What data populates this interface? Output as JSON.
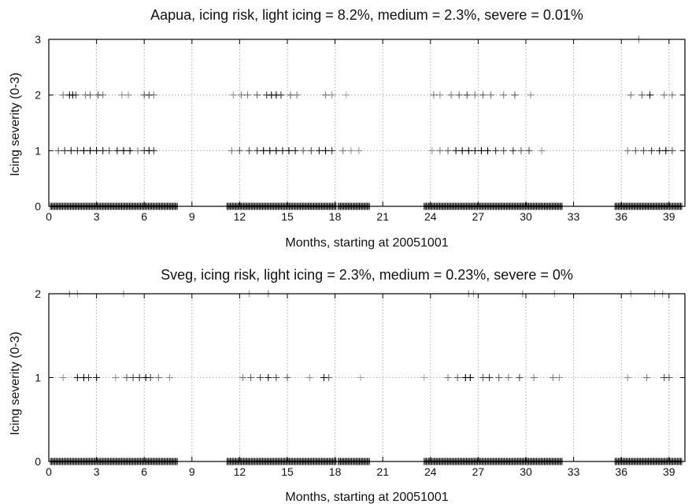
{
  "chart_data": [
    {
      "type": "scatter",
      "title": "Aapua, icing risk, light icing = 8.2%, medium = 2.3%, severe = 0.01%",
      "xlabel": "Months, starting at 20051001",
      "ylabel": "Icing severity (0-3)",
      "xlim": [
        0,
        40
      ],
      "ylim": [
        0,
        3
      ],
      "xticks": [
        0,
        3,
        6,
        9,
        12,
        15,
        18,
        21,
        24,
        27,
        30,
        33,
        36,
        39
      ],
      "yticks": [
        0,
        1,
        2,
        3
      ],
      "grid": true,
      "series": [
        {
          "marker": "+",
          "level0_ranges": [
            [
              0.1,
              8.1
            ],
            [
              11.2,
              18.1
            ],
            [
              18.2,
              20.2
            ],
            [
              23.6,
              32.3
            ],
            [
              35.6,
              39.8
            ]
          ],
          "points": [
            {
              "x": 0.9,
              "y": 2,
              "a": 0.5
            },
            {
              "x": 1.3,
              "y": 2,
              "a": 0.9
            },
            {
              "x": 1.5,
              "y": 2,
              "a": 1.0
            },
            {
              "x": 1.7,
              "y": 2,
              "a": 0.7
            },
            {
              "x": 2.3,
              "y": 2,
              "a": 0.5
            },
            {
              "x": 2.6,
              "y": 2,
              "a": 0.6
            },
            {
              "x": 3.1,
              "y": 2,
              "a": 0.7
            },
            {
              "x": 3.4,
              "y": 2,
              "a": 0.5
            },
            {
              "x": 4.6,
              "y": 2,
              "a": 0.4
            },
            {
              "x": 5.0,
              "y": 2,
              "a": 0.4
            },
            {
              "x": 6.0,
              "y": 2,
              "a": 0.6
            },
            {
              "x": 6.3,
              "y": 2,
              "a": 0.7
            },
            {
              "x": 6.6,
              "y": 2,
              "a": 0.5
            },
            {
              "x": 11.6,
              "y": 2,
              "a": 0.4
            },
            {
              "x": 12.1,
              "y": 2,
              "a": 0.5
            },
            {
              "x": 12.5,
              "y": 2,
              "a": 0.5
            },
            {
              "x": 13.1,
              "y": 2,
              "a": 0.6
            },
            {
              "x": 13.7,
              "y": 2,
              "a": 0.8
            },
            {
              "x": 14.0,
              "y": 2,
              "a": 1.0
            },
            {
              "x": 14.3,
              "y": 2,
              "a": 1.0
            },
            {
              "x": 14.6,
              "y": 2,
              "a": 0.8
            },
            {
              "x": 15.2,
              "y": 2,
              "a": 0.6
            },
            {
              "x": 15.6,
              "y": 2,
              "a": 0.5
            },
            {
              "x": 17.4,
              "y": 2,
              "a": 0.5
            },
            {
              "x": 17.8,
              "y": 2,
              "a": 0.4
            },
            {
              "x": 18.7,
              "y": 2,
              "a": 0.3
            },
            {
              "x": 24.2,
              "y": 2,
              "a": 0.5
            },
            {
              "x": 24.6,
              "y": 2,
              "a": 0.4
            },
            {
              "x": 25.3,
              "y": 2,
              "a": 0.5
            },
            {
              "x": 25.8,
              "y": 2,
              "a": 0.6
            },
            {
              "x": 26.3,
              "y": 2,
              "a": 0.7
            },
            {
              "x": 26.8,
              "y": 2,
              "a": 0.5
            },
            {
              "x": 27.3,
              "y": 2,
              "a": 0.6
            },
            {
              "x": 27.8,
              "y": 2,
              "a": 0.5
            },
            {
              "x": 28.6,
              "y": 2,
              "a": 0.5
            },
            {
              "x": 29.3,
              "y": 2,
              "a": 0.6
            },
            {
              "x": 30.3,
              "y": 2,
              "a": 0.4
            },
            {
              "x": 36.6,
              "y": 2,
              "a": 0.5
            },
            {
              "x": 37.3,
              "y": 2,
              "a": 0.6
            },
            {
              "x": 37.8,
              "y": 2,
              "a": 0.9
            },
            {
              "x": 38.7,
              "y": 2,
              "a": 0.5
            },
            {
              "x": 39.2,
              "y": 2,
              "a": 0.5
            },
            {
              "x": 0.6,
              "y": 1,
              "a": 0.6
            },
            {
              "x": 1.0,
              "y": 1,
              "a": 0.8
            },
            {
              "x": 1.4,
              "y": 1,
              "a": 0.9
            },
            {
              "x": 1.8,
              "y": 1,
              "a": 0.8
            },
            {
              "x": 2.2,
              "y": 1,
              "a": 1.0
            },
            {
              "x": 2.6,
              "y": 1,
              "a": 1.0
            },
            {
              "x": 3.0,
              "y": 1,
              "a": 1.0
            },
            {
              "x": 3.4,
              "y": 1,
              "a": 0.9
            },
            {
              "x": 3.8,
              "y": 1,
              "a": 0.7
            },
            {
              "x": 4.3,
              "y": 1,
              "a": 0.9
            },
            {
              "x": 4.7,
              "y": 1,
              "a": 1.0
            },
            {
              "x": 5.1,
              "y": 1,
              "a": 1.0
            },
            {
              "x": 5.6,
              "y": 1,
              "a": 0.5
            },
            {
              "x": 6.0,
              "y": 1,
              "a": 0.8
            },
            {
              "x": 6.3,
              "y": 1,
              "a": 1.0
            },
            {
              "x": 6.6,
              "y": 1,
              "a": 0.8
            },
            {
              "x": 11.5,
              "y": 1,
              "a": 0.5
            },
            {
              "x": 12.0,
              "y": 1,
              "a": 0.6
            },
            {
              "x": 12.6,
              "y": 1,
              "a": 0.7
            },
            {
              "x": 13.1,
              "y": 1,
              "a": 0.8
            },
            {
              "x": 13.5,
              "y": 1,
              "a": 1.0
            },
            {
              "x": 13.9,
              "y": 1,
              "a": 1.0
            },
            {
              "x": 14.3,
              "y": 1,
              "a": 1.0
            },
            {
              "x": 14.7,
              "y": 1,
              "a": 0.9
            },
            {
              "x": 15.1,
              "y": 1,
              "a": 1.0
            },
            {
              "x": 15.5,
              "y": 1,
              "a": 0.9
            },
            {
              "x": 16.0,
              "y": 1,
              "a": 0.6
            },
            {
              "x": 16.5,
              "y": 1,
              "a": 0.7
            },
            {
              "x": 17.0,
              "y": 1,
              "a": 0.9
            },
            {
              "x": 17.4,
              "y": 1,
              "a": 1.0
            },
            {
              "x": 17.8,
              "y": 1,
              "a": 0.8
            },
            {
              "x": 18.5,
              "y": 1,
              "a": 0.5
            },
            {
              "x": 19.0,
              "y": 1,
              "a": 0.4
            },
            {
              "x": 19.5,
              "y": 1,
              "a": 0.4
            },
            {
              "x": 24.1,
              "y": 1,
              "a": 0.4
            },
            {
              "x": 24.6,
              "y": 1,
              "a": 0.5
            },
            {
              "x": 25.1,
              "y": 1,
              "a": 0.6
            },
            {
              "x": 25.6,
              "y": 1,
              "a": 0.9
            },
            {
              "x": 26.0,
              "y": 1,
              "a": 1.0
            },
            {
              "x": 26.4,
              "y": 1,
              "a": 1.0
            },
            {
              "x": 26.8,
              "y": 1,
              "a": 0.9
            },
            {
              "x": 27.2,
              "y": 1,
              "a": 1.0
            },
            {
              "x": 27.6,
              "y": 1,
              "a": 1.0
            },
            {
              "x": 28.1,
              "y": 1,
              "a": 0.8
            },
            {
              "x": 28.6,
              "y": 1,
              "a": 0.7
            },
            {
              "x": 29.2,
              "y": 1,
              "a": 0.8
            },
            {
              "x": 29.7,
              "y": 1,
              "a": 0.6
            },
            {
              "x": 30.2,
              "y": 1,
              "a": 0.7
            },
            {
              "x": 31.0,
              "y": 1,
              "a": 0.4
            },
            {
              "x": 36.4,
              "y": 1,
              "a": 0.5
            },
            {
              "x": 36.9,
              "y": 1,
              "a": 0.6
            },
            {
              "x": 37.4,
              "y": 1,
              "a": 0.7
            },
            {
              "x": 37.9,
              "y": 1,
              "a": 0.8
            },
            {
              "x": 38.4,
              "y": 1,
              "a": 0.9
            },
            {
              "x": 38.8,
              "y": 1,
              "a": 1.0
            },
            {
              "x": 39.2,
              "y": 1,
              "a": 0.7
            },
            {
              "x": 37.1,
              "y": 3,
              "a": 0.5
            }
          ]
        }
      ]
    },
    {
      "type": "scatter",
      "title": "Sveg, icing risk, light icing = 2.3%, medium = 0.23%, severe = 0%",
      "xlabel": "Months, starting at 20051001",
      "ylabel": "Icing severity (0-3)",
      "xlim": [
        0,
        40
      ],
      "ylim": [
        0,
        2
      ],
      "xticks": [
        0,
        3,
        6,
        9,
        12,
        15,
        18,
        21,
        24,
        27,
        30,
        33,
        36,
        39
      ],
      "yticks": [
        0,
        1,
        2
      ],
      "grid": true,
      "series": [
        {
          "marker": "+",
          "level0_ranges": [
            [
              0.1,
              8.1
            ],
            [
              11.2,
              18.1
            ],
            [
              18.2,
              20.2
            ],
            [
              23.6,
              32.3
            ],
            [
              35.6,
              39.8
            ]
          ],
          "points": [
            {
              "x": 1.3,
              "y": 2,
              "a": 0.5
            },
            {
              "x": 1.8,
              "y": 2,
              "a": 0.4
            },
            {
              "x": 4.7,
              "y": 2,
              "a": 0.4
            },
            {
              "x": 12.6,
              "y": 2,
              "a": 0.4
            },
            {
              "x": 13.8,
              "y": 2,
              "a": 0.5
            },
            {
              "x": 26.4,
              "y": 2,
              "a": 0.5
            },
            {
              "x": 26.7,
              "y": 2,
              "a": 0.4
            },
            {
              "x": 29.8,
              "y": 2,
              "a": 0.5
            },
            {
              "x": 31.8,
              "y": 2,
              "a": 0.4
            },
            {
              "x": 36.6,
              "y": 2,
              "a": 0.4
            },
            {
              "x": 38.1,
              "y": 2,
              "a": 0.4
            },
            {
              "x": 38.6,
              "y": 2,
              "a": 0.4
            },
            {
              "x": 0.9,
              "y": 1,
              "a": 0.4
            },
            {
              "x": 1.8,
              "y": 1,
              "a": 0.9
            },
            {
              "x": 2.2,
              "y": 1,
              "a": 1.0
            },
            {
              "x": 2.5,
              "y": 1,
              "a": 0.8
            },
            {
              "x": 3.0,
              "y": 1,
              "a": 0.9
            },
            {
              "x": 4.2,
              "y": 1,
              "a": 0.4
            },
            {
              "x": 4.9,
              "y": 1,
              "a": 0.6
            },
            {
              "x": 5.3,
              "y": 1,
              "a": 0.7
            },
            {
              "x": 5.7,
              "y": 1,
              "a": 0.8
            },
            {
              "x": 6.1,
              "y": 1,
              "a": 1.0
            },
            {
              "x": 6.4,
              "y": 1,
              "a": 0.7
            },
            {
              "x": 6.9,
              "y": 1,
              "a": 0.5
            },
            {
              "x": 7.6,
              "y": 1,
              "a": 0.4
            },
            {
              "x": 12.2,
              "y": 1,
              "a": 0.5
            },
            {
              "x": 12.7,
              "y": 1,
              "a": 0.6
            },
            {
              "x": 13.3,
              "y": 1,
              "a": 0.7
            },
            {
              "x": 13.8,
              "y": 1,
              "a": 0.9
            },
            {
              "x": 14.3,
              "y": 1,
              "a": 0.7
            },
            {
              "x": 15.0,
              "y": 1,
              "a": 0.6
            },
            {
              "x": 16.4,
              "y": 1,
              "a": 0.4
            },
            {
              "x": 17.3,
              "y": 1,
              "a": 0.9
            },
            {
              "x": 17.6,
              "y": 1,
              "a": 0.6
            },
            {
              "x": 19.6,
              "y": 1,
              "a": 0.3
            },
            {
              "x": 23.6,
              "y": 1,
              "a": 0.3
            },
            {
              "x": 25.1,
              "y": 1,
              "a": 0.5
            },
            {
              "x": 25.7,
              "y": 1,
              "a": 0.6
            },
            {
              "x": 26.2,
              "y": 1,
              "a": 1.0
            },
            {
              "x": 26.5,
              "y": 1,
              "a": 1.0
            },
            {
              "x": 27.3,
              "y": 1,
              "a": 0.7
            },
            {
              "x": 27.7,
              "y": 1,
              "a": 0.8
            },
            {
              "x": 28.3,
              "y": 1,
              "a": 0.6
            },
            {
              "x": 28.9,
              "y": 1,
              "a": 0.5
            },
            {
              "x": 29.6,
              "y": 1,
              "a": 0.7
            },
            {
              "x": 30.5,
              "y": 1,
              "a": 0.5
            },
            {
              "x": 31.7,
              "y": 1,
              "a": 0.5
            },
            {
              "x": 32.1,
              "y": 1,
              "a": 0.4
            },
            {
              "x": 36.4,
              "y": 1,
              "a": 0.4
            },
            {
              "x": 37.6,
              "y": 1,
              "a": 0.5
            },
            {
              "x": 38.7,
              "y": 1,
              "a": 0.7
            },
            {
              "x": 39.0,
              "y": 1,
              "a": 0.6
            }
          ]
        }
      ]
    }
  ]
}
